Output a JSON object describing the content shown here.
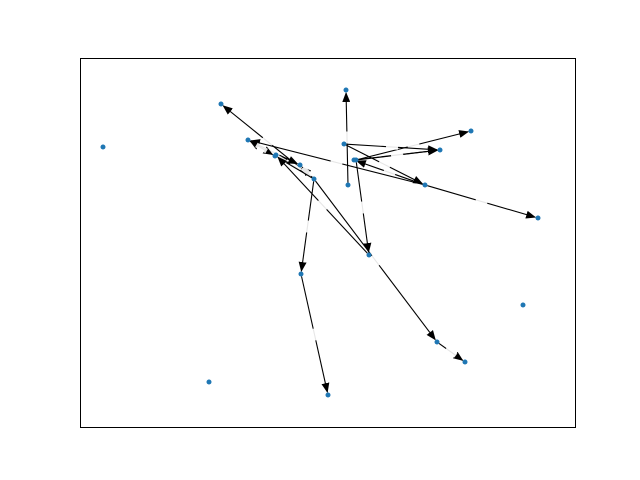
{
  "figure": {
    "background": "#ffffff",
    "frame_color": "#000000",
    "node_color": "#1f77b4",
    "edge_color": "#000000",
    "edge_label_bg": "#ffffff",
    "edge_label_text": ""
  },
  "graph": {
    "nodes": [
      {
        "id": "n0"
      },
      {
        "id": "n1"
      },
      {
        "id": "n2"
      },
      {
        "id": "n3"
      },
      {
        "id": "n4"
      },
      {
        "id": "n5"
      },
      {
        "id": "n6"
      },
      {
        "id": "n7"
      },
      {
        "id": "n8"
      },
      {
        "id": "n9"
      },
      {
        "id": "n10"
      },
      {
        "id": "n11"
      },
      {
        "id": "n12"
      },
      {
        "id": "n13"
      },
      {
        "id": "n14"
      },
      {
        "id": "n15"
      },
      {
        "id": "n16"
      },
      {
        "id": "n17"
      },
      {
        "id": "n18"
      },
      {
        "id": "n19"
      },
      {
        "id": "n20"
      },
      {
        "id": "n21"
      },
      {
        "id": "n22"
      }
    ],
    "edges": [
      {
        "source": "n10",
        "target": "n1"
      },
      {
        "source": "n13",
        "target": "n3"
      },
      {
        "source": "n13",
        "target": "n4"
      },
      {
        "source": "n13",
        "target": "n16"
      },
      {
        "source": "n8",
        "target": "n2"
      },
      {
        "source": "n8",
        "target": "n6"
      },
      {
        "source": "n8",
        "target": "n7"
      },
      {
        "source": "n8",
        "target": "n14"
      },
      {
        "source": "n8",
        "target": "n15"
      },
      {
        "source": "n8",
        "target": "n17"
      },
      {
        "source": "n9",
        "target": "n3"
      },
      {
        "source": "n9",
        "target": "n12"
      },
      {
        "source": "n11",
        "target": "n3"
      },
      {
        "source": "n12",
        "target": "n5"
      },
      {
        "source": "n12",
        "target": "n11"
      },
      {
        "source": "n12",
        "target": "n14"
      },
      {
        "source": "n14",
        "target": "n7"
      },
      {
        "source": "n14",
        "target": "n19"
      },
      {
        "source": "n15",
        "target": "n18"
      },
      {
        "source": "n17",
        "target": "n20"
      },
      {
        "source": "n16",
        "target": "n6"
      }
    ]
  }
}
